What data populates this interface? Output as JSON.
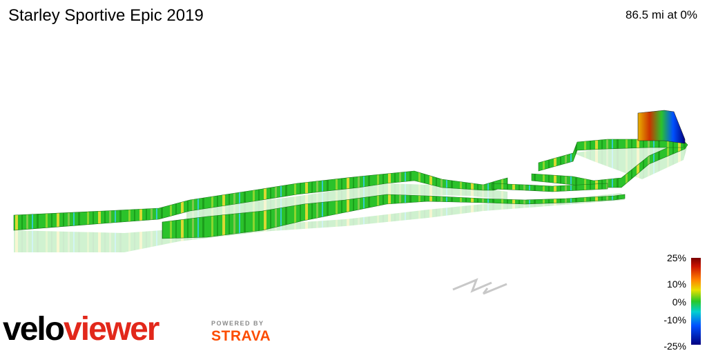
{
  "header": {
    "title": "Starley Sportive Epic 2019",
    "stat": "86.5 mi at 0%"
  },
  "branding": {
    "logo_part1": "velo",
    "logo_part2": "viewer",
    "powered_by": "POWERED BY",
    "strava": "STRAVA"
  },
  "legend": {
    "labels": [
      "25%",
      "10%",
      "0%",
      "-10%",
      "-25%"
    ]
  },
  "colors": {
    "route_main": "#33cc33",
    "climb_steep": "#cc1500",
    "descent_steep": "#0000a0",
    "velo": "#000000",
    "viewer": "#e2281b",
    "strava": "#fc4c02"
  },
  "icons": {
    "north_arrow": "north-arrow-icon"
  }
}
